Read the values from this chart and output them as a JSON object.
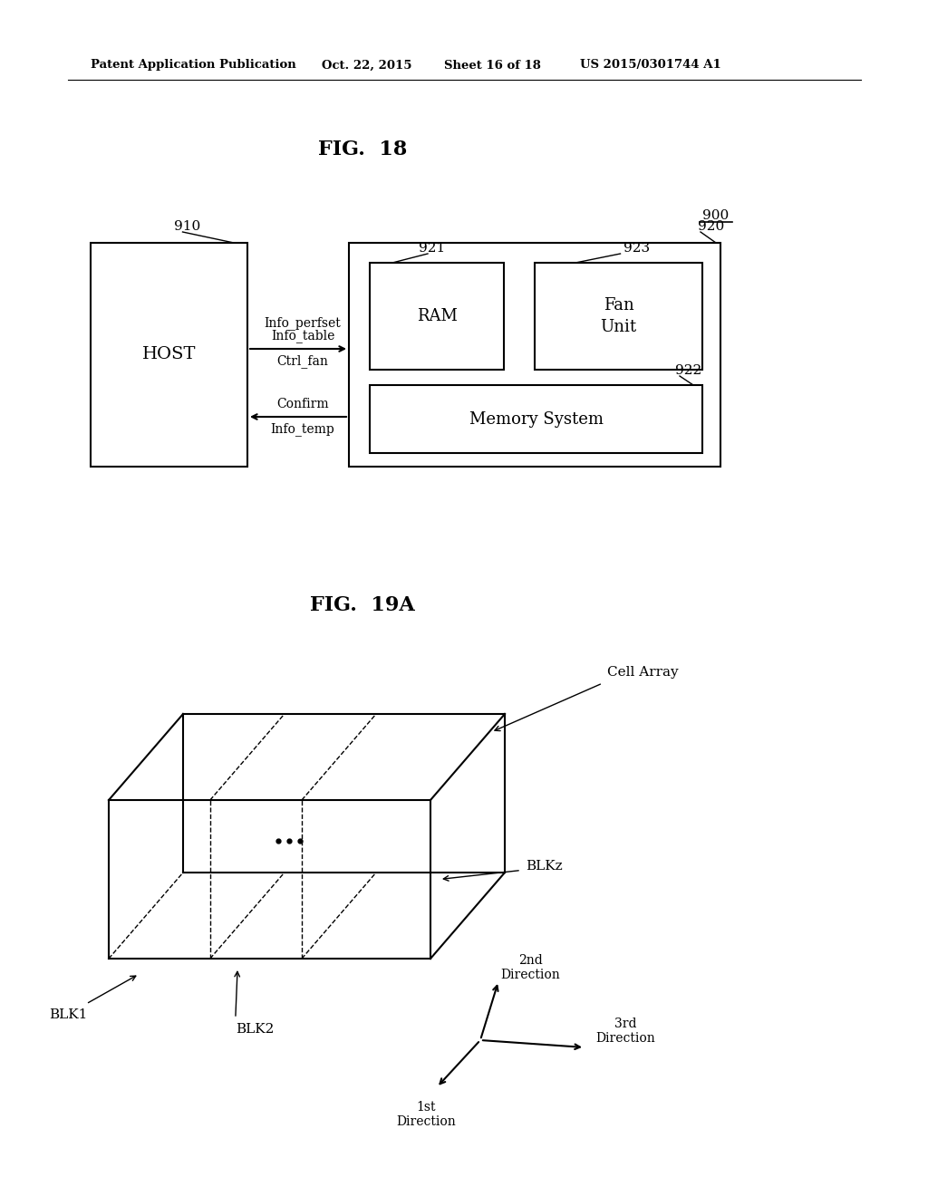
{
  "bg_color": "#ffffff",
  "header_text": "Patent Application Publication",
  "header_date": "Oct. 22, 2015",
  "header_sheet": "Sheet 16 of 18",
  "header_patent": "US 2015/0301744 A1",
  "fig18_title": "FIG.  18",
  "fig19a_title": "FIG.  19A",
  "label_900": "900",
  "label_910": "910",
  "label_920": "920",
  "label_921": "921",
  "label_922": "922",
  "label_923": "923",
  "host_label": "HOST",
  "ram_label": "RAM",
  "fan_unit_label": "Fan\nUnit",
  "mem_sys_label": "Memory System",
  "arrow1_labels": [
    "Info_perfset",
    "Info_table",
    "Ctrl_fan"
  ],
  "arrow2_labels": [
    "Confirm",
    "Info_temp"
  ],
  "cell_array_label": "Cell Array",
  "blk1_label": "BLK1",
  "blk2_label": "BLK2",
  "blkz_label": "BLKz",
  "dir1_label": "1st\nDirection",
  "dir2_label": "2nd\nDirection",
  "dir3_label": "3rd\nDirection"
}
